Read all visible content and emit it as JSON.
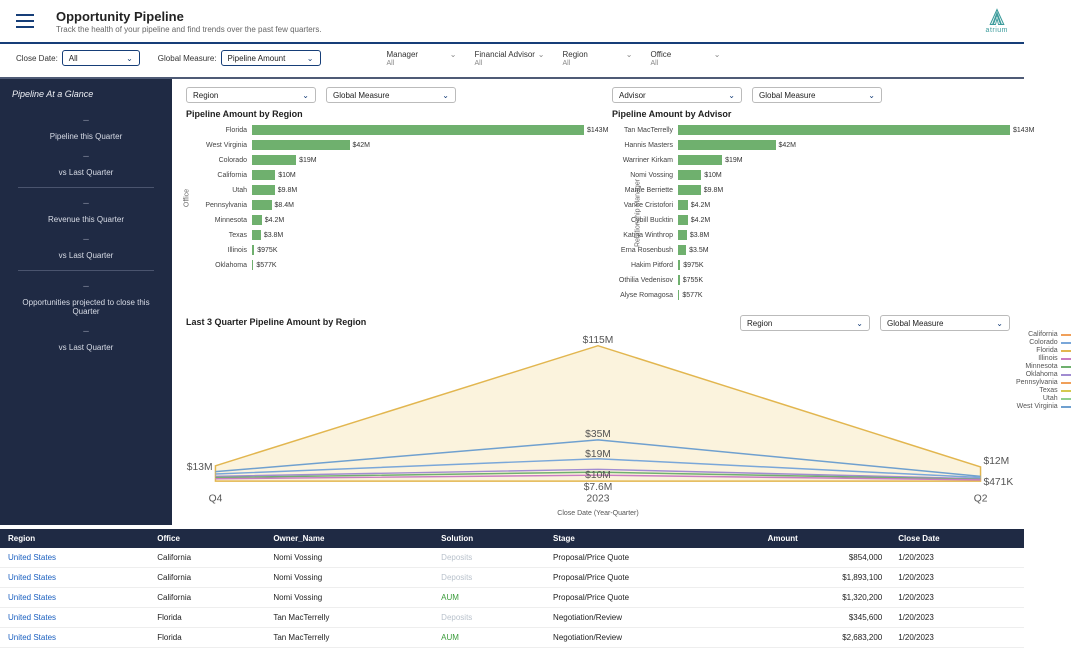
{
  "header": {
    "title": "Opportunity Pipeline",
    "subtitle": "Track the health of your pipeline and find trends over the past few quarters.",
    "brand": "atrium"
  },
  "filters": {
    "close_date_label": "Close Date:",
    "close_date_value": "All",
    "global_measure_label": "Global Measure:",
    "global_measure_value": "Pipeline Amount",
    "manager": {
      "label": "Manager",
      "value": "All"
    },
    "financial_advisor": {
      "label": "Financial Advisor",
      "value": "All"
    },
    "region": {
      "label": "Region",
      "value": "All"
    },
    "office": {
      "label": "Office",
      "value": "All"
    }
  },
  "sidebar": {
    "title": "Pipeline At a Glance",
    "items": [
      "Pipeline this Quarter",
      "vs Last Quarter",
      "Revenue this Quarter",
      "vs Last Quarter",
      "Opportunities projected to close this Quarter",
      "vs Last Quarter"
    ]
  },
  "content_selects": {
    "top_left_a": "Region",
    "top_left_b": "Global Measure",
    "top_right_a": "Advisor",
    "top_right_b": "Global Measure",
    "trend_a": "Region",
    "trend_b": "Global Measure"
  },
  "region_chart": {
    "title": "Pipeline Amount by Region",
    "axis_label": "Office",
    "max": 143,
    "bar_color": "#6fb06e",
    "categories": [
      "Florida",
      "West Virginia",
      "Colorado",
      "California",
      "Utah",
      "Pennsylvania",
      "Minnesota",
      "Texas",
      "Illinois",
      "Oklahoma"
    ],
    "values_display": [
      "$143M",
      "$42M",
      "$19M",
      "$10M",
      "$9.8M",
      "$8.4M",
      "$4.2M",
      "$3.8M",
      "$975K",
      "$577K"
    ],
    "values_num": [
      143,
      42,
      19,
      10,
      9.8,
      8.4,
      4.2,
      3.8,
      0.975,
      0.577
    ]
  },
  "advisor_chart": {
    "title": "Pipeline Amount by Advisor",
    "axis_label": "Relationship Manager",
    "max": 143,
    "bar_color": "#6fb06e",
    "categories": [
      "Tan MacTerrelly",
      "Hannis Masters",
      "Warriner Kirkam",
      "Nomi Vossing",
      "Marrie Berriette",
      "Vance Cristofori",
      "Cybill Bucktin",
      "Katina Winthrop",
      "Erna Rosenbush",
      "Hakim Pitford",
      "Othilia Vedenisov",
      "Alyse Romagosa"
    ],
    "values_display": [
      "$143M",
      "$42M",
      "$19M",
      "$10M",
      "$9.8M",
      "$4.2M",
      "$4.2M",
      "$3.8M",
      "$3.5M",
      "$975K",
      "$755K",
      "$577K"
    ],
    "values_num": [
      143,
      42,
      19,
      10,
      9.8,
      4.2,
      4.2,
      3.8,
      3.5,
      0.975,
      0.755,
      0.577
    ]
  },
  "trend_chart": {
    "title": "Last 3 Quarter Pipeline Amount by Region",
    "x_axis_label": "Close Date (Year-Quarter)",
    "x_ticks": [
      "Q4",
      "2023",
      "Q2"
    ],
    "value_labels": [
      "$13M",
      "$115M",
      "$35M",
      "$19M",
      "$10M",
      "$7.6M",
      "$12M",
      "$471K"
    ],
    "legend": [
      {
        "label": "California",
        "color": "#f0a05a"
      },
      {
        "label": "Colorado",
        "color": "#7aa7d9"
      },
      {
        "label": "Florida",
        "color": "#e2b64f"
      },
      {
        "label": "Illinois",
        "color": "#c97cc2"
      },
      {
        "label": "Minnesota",
        "color": "#6fb06e"
      },
      {
        "label": "Oklahoma",
        "color": "#a18cd1"
      },
      {
        "label": "Pennsylvania",
        "color": "#f0a05a"
      },
      {
        "label": "Texas",
        "color": "#d4c94f"
      },
      {
        "label": "Utah",
        "color": "#8fcf8f"
      },
      {
        "label": "West Virginia",
        "color": "#6fa0cf"
      }
    ],
    "colors": {
      "area_fill": "#fbf3dd",
      "area_stroke": "#e2b64f",
      "grid": "#eeeeee"
    }
  },
  "table": {
    "columns": [
      "Region",
      "Office",
      "Owner_Name",
      "Solution",
      "Stage",
      "Amount",
      "Close Date"
    ],
    "rows": [
      {
        "region": "United States",
        "office": "California",
        "owner": "Nomi Vossing",
        "solution": "Deposits",
        "sol_style": "muted",
        "stage": "Proposal/Price Quote",
        "amount": "$854,000",
        "close": "1/20/2023"
      },
      {
        "region": "United States",
        "office": "California",
        "owner": "Nomi Vossing",
        "solution": "Deposits",
        "sol_style": "muted",
        "stage": "Proposal/Price Quote",
        "amount": "$1,893,100",
        "close": "1/20/2023"
      },
      {
        "region": "United States",
        "office": "California",
        "owner": "Nomi Vossing",
        "solution": "AUM",
        "sol_style": "green",
        "stage": "Proposal/Price Quote",
        "amount": "$1,320,200",
        "close": "1/20/2023"
      },
      {
        "region": "United States",
        "office": "Florida",
        "owner": "Tan MacTerrelly",
        "solution": "Deposits",
        "sol_style": "muted",
        "stage": "Negotiation/Review",
        "amount": "$345,600",
        "close": "1/20/2023"
      },
      {
        "region": "United States",
        "office": "Florida",
        "owner": "Tan MacTerrelly",
        "solution": "AUM",
        "sol_style": "green",
        "stage": "Negotiation/Review",
        "amount": "$2,683,200",
        "close": "1/20/2023"
      }
    ]
  }
}
